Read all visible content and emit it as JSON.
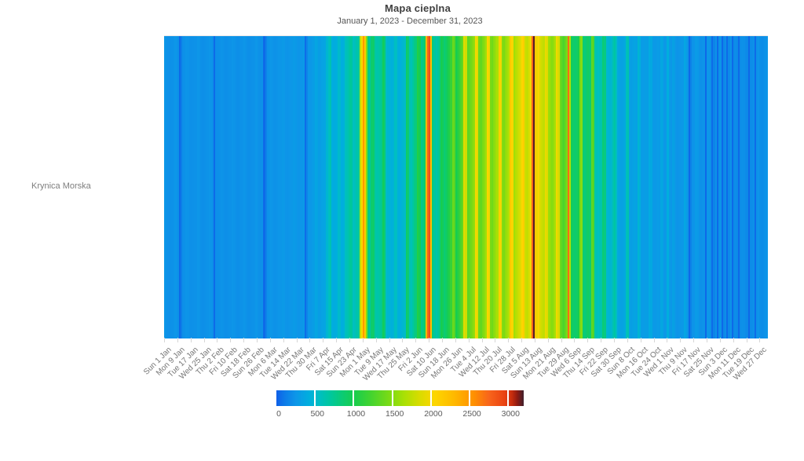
{
  "header": {
    "title": "Mapa cieplna",
    "subtitle": "January 1, 2023 - December 31, 2023"
  },
  "row_label": "Krynica Morska",
  "chart_data": {
    "type": "heatmap",
    "title": "Mapa cieplna",
    "subtitle": "January 1, 2023 - December 31, 2023",
    "rows": [
      "Krynica Morska"
    ],
    "x_start_date": "2023-01-01",
    "x_end_date": "2023-12-31",
    "days": 365,
    "x_tick_day_step": 8,
    "x_tick_labels": [
      "Sun 1 Jan",
      "Mon 9 Jan",
      "Tue 17 Jan",
      "Wed 25 Jan",
      "Thu 2 Feb",
      "Fri 10 Feb",
      "Sat 18 Feb",
      "Sun 26 Feb",
      "Mon 6 Mar",
      "Tue 14 Mar",
      "Wed 22 Mar",
      "Thu 30 Mar",
      "Fri 7 Apr",
      "Sat 15 Apr",
      "Sun 23 Apr",
      "Mon 1 May",
      "Tue 9 May",
      "Wed 17 May",
      "Thu 25 May",
      "Fri 2 Jun",
      "Sat 10 Jun",
      "Sun 18 Jun",
      "Mon 26 Jun",
      "Tue 4 Jul",
      "Wed 12 Jul",
      "Thu 20 Jul",
      "Fri 28 Jul",
      "Sat 5 Aug",
      "Sun 13 Aug",
      "Mon 21 Aug",
      "Tue 29 Aug",
      "Wed 6 Sep",
      "Thu 14 Sep",
      "Fri 22 Sep",
      "Sat 30 Sep",
      "Sun 8 Oct",
      "Mon 16 Oct",
      "Tue 24 Oct",
      "Wed 1 Nov",
      "Thu 9 Nov",
      "Fri 17 Nov",
      "Sat 25 Nov",
      "Sun 3 Dec",
      "Mon 11 Dec",
      "Tue 19 Dec",
      "Wed 27 Dec"
    ],
    "values": [
      260,
      230,
      225,
      220,
      228,
      235,
      255,
      248,
      225,
      40,
      120,
      215,
      225,
      245,
      240,
      220,
      215,
      222,
      228,
      230,
      250,
      242,
      218,
      212,
      220,
      226,
      232,
      252,
      244,
      215,
      45,
      210,
      215,
      222,
      240,
      235,
      218,
      214,
      220,
      226,
      230,
      248,
      238,
      216,
      212,
      220,
      228,
      234,
      250,
      240,
      218,
      214,
      224,
      230,
      236,
      254,
      246,
      222,
      218,
      226,
      45,
      140,
      230,
      240,
      255,
      245,
      230,
      228,
      238,
      248,
      260,
      280,
      268,
      242,
      238,
      246,
      254,
      262,
      285,
      272,
      248,
      244,
      252,
      260,
      270,
      55,
      160,
      258,
      266,
      290,
      310,
      360,
      345,
      300,
      310,
      325,
      340,
      355,
      480,
      560,
      620,
      420,
      400,
      415,
      430,
      520,
      500,
      420,
      440,
      560,
      600,
      650,
      720,
      700,
      560,
      580,
      640,
      700,
      1750,
      2050,
      2500,
      2150,
      1500,
      800,
      700,
      880,
      900,
      680,
      640,
      660,
      700,
      750,
      950,
      860,
      520,
      480,
      450,
      430,
      460,
      560,
      540,
      440,
      420,
      450,
      480,
      520,
      900,
      850,
      620,
      600,
      680,
      780,
      820,
      1050,
      980,
      750,
      800,
      900,
      2300,
      2750,
      2880,
      2250,
      820,
      700,
      650,
      700,
      780,
      1000,
      950,
      850,
      900,
      980,
      1050,
      1150,
      1400,
      1320,
      1000,
      1050,
      1150,
      1250,
      1350,
      1900,
      1820,
      1320,
      1360,
      1420,
      1480,
      1560,
      2000,
      1920,
      1400,
      1360,
      1450,
      1520,
      1620,
      2060,
      1960,
      1460,
      1420,
      1500,
      1580,
      1660,
      2100,
      2010,
      1500,
      1460,
      1550,
      1620,
      1700,
      2150,
      2060,
      1620,
      1700,
      1760,
      1820,
      1900,
      2050,
      2120,
      1800,
      1760,
      1860,
      2000,
      2750,
      3180,
      2150,
      1950,
      2060,
      1850,
      1800,
      1750,
      1950,
      1880,
      1600,
      1560,
      1500,
      1560,
      1650,
      1980,
      1850,
      1400,
      1300,
      1250,
      1350,
      1450,
      2720,
      1700,
      950,
      900,
      880,
      920,
      1000,
      1450,
      1520,
      860,
      820,
      880,
      920,
      860,
      1350,
      1280,
      650,
      600,
      560,
      600,
      640,
      850,
      800,
      500,
      460,
      480,
      500,
      620,
      680,
      560,
      380,
      350,
      330,
      350,
      380,
      580,
      620,
      330,
      310,
      330,
      350,
      330,
      480,
      430,
      300,
      290,
      300,
      310,
      300,
      400,
      380,
      280,
      270,
      280,
      290,
      285,
      370,
      350,
      270,
      265,
      420,
      280,
      260,
      330,
      310,
      250,
      240,
      250,
      260,
      270,
      360,
      320,
      245,
      35,
      150,
      235,
      240,
      290,
      275,
      230,
      225,
      235,
      240,
      40,
      260,
      255,
      225,
      50,
      160,
      230,
      40,
      230,
      245,
      35,
      175,
      205,
      45,
      185,
      235,
      40,
      190,
      205,
      185,
      45,
      200,
      225,
      215,
      190,
      180,
      35,
      195,
      205,
      215,
      50,
      230,
      245,
      210,
      200,
      220,
      235,
      250
    ],
    "color_scale": {
      "min": 0,
      "max": 3200,
      "legend_ticks": [
        "0",
        "500",
        "1000",
        "1500",
        "2000",
        "2500",
        "3000"
      ],
      "legend_tick_values": [
        0,
        500,
        1000,
        1500,
        2000,
        2500,
        3000
      ],
      "stops": [
        [
          0,
          "#0e5fe8"
        ],
        [
          120,
          "#0d7ee8"
        ],
        [
          250,
          "#0d96e8"
        ],
        [
          420,
          "#00aede"
        ],
        [
          560,
          "#00bfc0"
        ],
        [
          700,
          "#00c79d"
        ],
        [
          850,
          "#0bcb74"
        ],
        [
          1000,
          "#17cd4f"
        ],
        [
          1200,
          "#3ed332"
        ],
        [
          1450,
          "#78da16"
        ],
        [
          1650,
          "#a8e005"
        ],
        [
          1850,
          "#d8dc00"
        ],
        [
          2050,
          "#fdd600"
        ],
        [
          2300,
          "#ffb900"
        ],
        [
          2550,
          "#ff9100"
        ],
        [
          2750,
          "#f8651b"
        ],
        [
          2950,
          "#ea4312"
        ],
        [
          3050,
          "#c52c0e"
        ],
        [
          3120,
          "#8c1a12"
        ],
        [
          3200,
          "#40202e"
        ]
      ]
    },
    "legend_position": "bottom",
    "grid": false
  }
}
